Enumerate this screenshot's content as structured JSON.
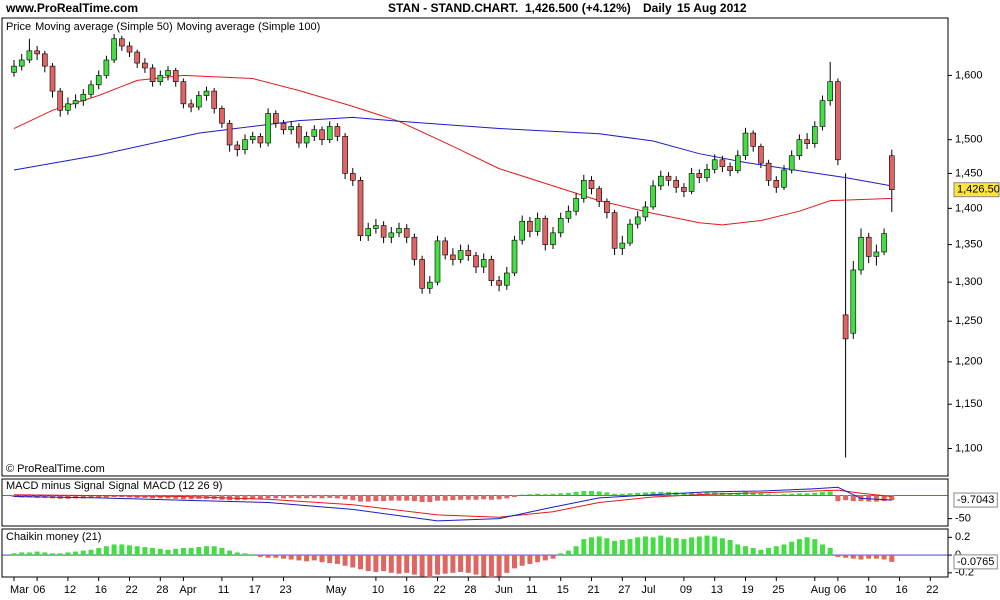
{
  "header": {
    "site": "www.ProRealTime.com",
    "instrument": "STAN - STAND.CHART.",
    "quote": "1,426.500 (+4.12%)",
    "period": "Daily",
    "date": "15 Aug 2012"
  },
  "chart_data": [
    {
      "type": "candlestick",
      "legend_label": "Price",
      "footer": "© ProRealTime.com",
      "log_scale": true,
      "up_color": "#44dd44",
      "down_color": "#e06464",
      "open": [
        1605,
        1615,
        1625,
        1640,
        1635,
        1615,
        1575,
        1545,
        1555,
        1560,
        1570,
        1585,
        1600,
        1625,
        1660,
        1648,
        1638,
        1620,
        1612,
        1590,
        1600,
        1608,
        1590,
        1555,
        1550,
        1568,
        1575,
        1548,
        1525,
        1492,
        1485,
        1500,
        1505,
        1495,
        1540,
        1525,
        1515,
        1520,
        1495,
        1505,
        1515,
        1500,
        1520,
        1505,
        1450,
        1440,
        1362,
        1372,
        1376,
        1360,
        1366,
        1372,
        1360,
        1330,
        1292,
        1300,
        1355,
        1336,
        1330,
        1342,
        1335,
        1320,
        1330,
        1302,
        1296,
        1312,
        1356,
        1382,
        1368,
        1386,
        1350,
        1366,
        1386,
        1396,
        1414,
        1440,
        1428,
        1410,
        1394,
        1345,
        1352,
        1378,
        1388,
        1402,
        1432,
        1446,
        1440,
        1430,
        1424,
        1450,
        1444,
        1456,
        1470,
        1460,
        1454,
        1476,
        1510,
        1490,
        1465,
        1440,
        1430,
        1455,
        1476,
        1500,
        1494,
        1520,
        1560,
        1590,
        1258,
        1235,
        1316,
        1360,
        1334,
        1340,
        1476
      ],
      "high": [
        1625,
        1635,
        1660,
        1648,
        1640,
        1620,
        1580,
        1565,
        1570,
        1578,
        1592,
        1608,
        1632,
        1668,
        1665,
        1655,
        1642,
        1628,
        1618,
        1608,
        1615,
        1612,
        1595,
        1562,
        1575,
        1582,
        1580,
        1552,
        1530,
        1498,
        1508,
        1512,
        1510,
        1548,
        1545,
        1530,
        1528,
        1525,
        1512,
        1522,
        1520,
        1528,
        1525,
        1510,
        1458,
        1445,
        1380,
        1385,
        1382,
        1374,
        1380,
        1378,
        1365,
        1335,
        1308,
        1362,
        1360,
        1345,
        1350,
        1350,
        1340,
        1338,
        1335,
        1308,
        1320,
        1362,
        1390,
        1388,
        1394,
        1390,
        1374,
        1394,
        1404,
        1422,
        1448,
        1446,
        1432,
        1414,
        1398,
        1362,
        1385,
        1396,
        1410,
        1440,
        1454,
        1452,
        1446,
        1436,
        1458,
        1456,
        1464,
        1478,
        1476,
        1466,
        1484,
        1518,
        1514,
        1494,
        1470,
        1446,
        1462,
        1484,
        1508,
        1510,
        1528,
        1568,
        1622,
        1595,
        1450,
        1328,
        1372,
        1366,
        1350,
        1372,
        1485
      ],
      "low": [
        1598,
        1608,
        1620,
        1625,
        1605,
        1565,
        1535,
        1538,
        1548,
        1552,
        1565,
        1578,
        1595,
        1620,
        1640,
        1630,
        1612,
        1604,
        1582,
        1584,
        1592,
        1582,
        1548,
        1542,
        1545,
        1560,
        1540,
        1518,
        1482,
        1475,
        1478,
        1494,
        1488,
        1490,
        1518,
        1508,
        1508,
        1488,
        1488,
        1498,
        1492,
        1495,
        1498,
        1442,
        1432,
        1355,
        1355,
        1365,
        1352,
        1352,
        1360,
        1352,
        1322,
        1285,
        1285,
        1296,
        1330,
        1322,
        1325,
        1328,
        1312,
        1312,
        1295,
        1288,
        1290,
        1308,
        1350,
        1360,
        1362,
        1342,
        1344,
        1360,
        1380,
        1390,
        1408,
        1420,
        1402,
        1386,
        1336,
        1336,
        1348,
        1372,
        1382,
        1398,
        1426,
        1432,
        1422,
        1416,
        1420,
        1436,
        1438,
        1450,
        1452,
        1446,
        1450,
        1470,
        1482,
        1458,
        1432,
        1422,
        1426,
        1450,
        1470,
        1486,
        1488,
        1514,
        1552,
        1462,
        1090,
        1228,
        1310,
        1325,
        1322,
        1336,
        1395
      ],
      "close": [
        1615,
        1625,
        1640,
        1635,
        1615,
        1575,
        1545,
        1555,
        1560,
        1570,
        1585,
        1600,
        1625,
        1660,
        1648,
        1638,
        1620,
        1612,
        1590,
        1600,
        1608,
        1590,
        1555,
        1550,
        1568,
        1575,
        1548,
        1525,
        1492,
        1485,
        1500,
        1505,
        1495,
        1540,
        1525,
        1515,
        1520,
        1495,
        1505,
        1515,
        1500,
        1520,
        1505,
        1450,
        1440,
        1362,
        1372,
        1376,
        1360,
        1366,
        1372,
        1360,
        1330,
        1292,
        1300,
        1355,
        1336,
        1330,
        1342,
        1335,
        1320,
        1330,
        1302,
        1296,
        1312,
        1356,
        1382,
        1368,
        1386,
        1350,
        1366,
        1386,
        1396,
        1414,
        1440,
        1428,
        1410,
        1394,
        1345,
        1352,
        1378,
        1388,
        1402,
        1432,
        1446,
        1440,
        1430,
        1424,
        1450,
        1444,
        1456,
        1470,
        1460,
        1454,
        1476,
        1510,
        1490,
        1465,
        1440,
        1430,
        1455,
        1476,
        1500,
        1494,
        1520,
        1560,
        1590,
        1470,
        1228,
        1316,
        1360,
        1334,
        1340,
        1365,
        1426.5
      ],
      "close_label": "1,426.500",
      "series": [
        {
          "name": "Moving average (Simple 50)",
          "color": "#e01c1c",
          "x": [
            0,
            5,
            11,
            16,
            22,
            31,
            37,
            44,
            50,
            57,
            63,
            70,
            76,
            83,
            89,
            92,
            97,
            102,
            106,
            114
          ],
          "values": [
            1517,
            1545,
            1568,
            1592,
            1600,
            1595,
            1576,
            1551,
            1528,
            1490,
            1457,
            1432,
            1411,
            1393,
            1380,
            1377,
            1383,
            1396,
            1411,
            1414
          ]
        },
        {
          "name": "Moving average (Simple 100)",
          "color": "#1c1cc8",
          "x": [
            0,
            11,
            24,
            37,
            44,
            50,
            63,
            76,
            83,
            89,
            95,
            102,
            108,
            114
          ],
          "values": [
            1455,
            1477,
            1510,
            1529,
            1534,
            1528,
            1517,
            1509,
            1498,
            1479,
            1466,
            1454,
            1444,
            1432
          ]
        }
      ],
      "ylim": [
        1070,
        1695
      ],
      "yticks": [
        {
          "value": 1100,
          "label": "1,100"
        },
        {
          "value": 1150,
          "label": "1,150"
        },
        {
          "value": 1200,
          "label": "1,200"
        },
        {
          "value": 1250,
          "label": "1,250"
        },
        {
          "value": 1300,
          "label": "1,300"
        },
        {
          "value": 1350,
          "label": "1,350"
        },
        {
          "value": 1400,
          "label": "1,400"
        },
        {
          "value": 1450,
          "label": "1,450"
        },
        {
          "value": 1500,
          "label": "1,500"
        },
        {
          "value": 1600,
          "label": "1,600"
        }
      ],
      "xlim": [
        -1.56,
        121.3
      ],
      "xticks": [
        {
          "value": 0,
          "label": "Mar"
        },
        {
          "value": 3,
          "label": "06"
        },
        {
          "value": 7,
          "label": "12"
        },
        {
          "value": 11,
          "label": "16"
        },
        {
          "value": 15,
          "label": "22"
        },
        {
          "value": 19,
          "label": "28"
        },
        {
          "value": 22,
          "label": "Apr"
        },
        {
          "value": 27,
          "label": "11"
        },
        {
          "value": 31,
          "label": "17"
        },
        {
          "value": 35,
          "label": "23"
        },
        {
          "value": 41,
          "label": "May"
        },
        {
          "value": 47,
          "label": "10"
        },
        {
          "value": 51,
          "label": "16"
        },
        {
          "value": 55,
          "label": "22"
        },
        {
          "value": 59,
          "label": "28"
        },
        {
          "value": 63,
          "label": "Jun"
        },
        {
          "value": 67,
          "label": "11"
        },
        {
          "value": 71,
          "label": "15"
        },
        {
          "value": 75,
          "label": "21"
        },
        {
          "value": 79,
          "label": "27"
        },
        {
          "value": 82,
          "label": "Jul"
        },
        {
          "value": 87,
          "label": "09"
        },
        {
          "value": 91,
          "label": "13"
        },
        {
          "value": 95,
          "label": "19"
        },
        {
          "value": 99,
          "label": "25"
        },
        {
          "value": 104,
          "label": "Aug"
        },
        {
          "value": 107,
          "label": "06"
        },
        {
          "value": 111,
          "label": "10"
        },
        {
          "value": 115,
          "label": "16"
        },
        {
          "value": 119,
          "label": "22"
        }
      ]
    },
    {
      "type": "macd",
      "histogram_name": "MACD minus Signal",
      "histogram_up_color": "#44dd44",
      "histogram_down_color": "#e06464",
      "histogram": [
        -3,
        -4,
        -4,
        -5,
        -5,
        -6,
        -7,
        -7,
        -6,
        -6,
        -5,
        -5,
        -4,
        -3,
        -3,
        -4,
        -5,
        -5,
        -6,
        -6,
        -6,
        -7,
        -8,
        -8,
        -7,
        -7,
        -8,
        -9,
        -10,
        -10,
        -9,
        -8,
        -8,
        -6,
        -6,
        -6,
        -5,
        -6,
        -6,
        -5,
        -6,
        -5,
        -6,
        -8,
        -10,
        -13,
        -13,
        -12,
        -12,
        -11,
        -11,
        -11,
        -12,
        -14,
        -14,
        -11,
        -11,
        -10,
        -9,
        -9,
        -9,
        -8,
        -9,
        -8,
        -6,
        -3,
        2,
        3,
        4,
        3,
        4,
        5,
        6,
        8,
        10,
        10,
        9,
        7,
        4,
        4,
        5,
        6,
        7,
        8,
        8,
        8,
        7,
        6,
        7,
        6,
        7,
        7,
        6,
        5,
        6,
        8,
        7,
        5,
        3,
        2,
        3,
        4,
        5,
        5,
        6,
        8,
        9,
        -12,
        -10,
        -12,
        -12,
        -13,
        -13,
        -12,
        -10
      ],
      "series": [
        {
          "name": "Signal",
          "color": "#e01c1c",
          "x": [
            0,
            11,
            22,
            33,
            44,
            55,
            63,
            70,
            76,
            83,
            90,
            97,
            104,
            107,
            110,
            114
          ],
          "values": [
            2,
            0,
            -2,
            -8,
            -20,
            -42,
            -47,
            -35,
            -15,
            -3,
            3,
            6,
            10,
            12,
            5,
            -2
          ]
        },
        {
          "name": "MACD (12 26 9)",
          "color": "#1c1cc8",
          "x": [
            0,
            11,
            22,
            33,
            44,
            55,
            63,
            70,
            76,
            83,
            90,
            97,
            104,
            107,
            110,
            114
          ],
          "values": [
            -2,
            -5,
            -10,
            -15,
            -30,
            -55,
            -50,
            -25,
            -5,
            2,
            8,
            10,
            15,
            18,
            -6,
            -9.7043
          ]
        }
      ],
      "ylim": [
        -66,
        36
      ],
      "yticks": [
        -50
      ]
    },
    {
      "type": "bar",
      "title": "Chaikin money (21)",
      "up_color": "#44dd44",
      "down_color": "#e06464",
      "values": [
        0.02,
        0.03,
        0.03,
        0.04,
        0.03,
        0.02,
        0.02,
        0.03,
        0.04,
        0.05,
        0.06,
        0.08,
        0.1,
        0.12,
        0.12,
        0.11,
        0.1,
        0.09,
        0.08,
        0.07,
        0.06,
        0.07,
        0.08,
        0.08,
        0.09,
        0.1,
        0.1,
        0.08,
        0.05,
        0.03,
        0.02,
        0.01,
        -0.02,
        -0.03,
        -0.03,
        -0.04,
        -0.05,
        -0.06,
        -0.07,
        -0.06,
        -0.08,
        -0.09,
        -0.1,
        -0.12,
        -0.14,
        -0.16,
        -0.18,
        -0.19,
        -0.18,
        -0.2,
        -0.21,
        -0.2,
        -0.22,
        -0.24,
        -0.25,
        -0.22,
        -0.21,
        -0.2,
        -0.19,
        -0.2,
        -0.22,
        -0.24,
        -0.25,
        -0.24,
        -0.2,
        -0.15,
        -0.12,
        -0.1,
        -0.08,
        -0.06,
        -0.04,
        0.02,
        0.05,
        0.1,
        0.18,
        0.2,
        0.21,
        0.19,
        0.16,
        0.17,
        0.18,
        0.2,
        0.21,
        0.2,
        0.22,
        0.2,
        0.19,
        0.18,
        0.2,
        0.21,
        0.22,
        0.21,
        0.19,
        0.17,
        0.12,
        0.1,
        0.08,
        0.06,
        0.08,
        0.1,
        0.12,
        0.15,
        0.18,
        0.2,
        0.18,
        0.12,
        0.08,
        -0.02,
        -0.03,
        -0.04,
        -0.05,
        -0.04,
        -0.04,
        -0.05,
        -0.0765
      ],
      "ylim": [
        -0.247,
        0.294
      ],
      "yticks": [
        0.2,
        0,
        -0.2
      ]
    }
  ]
}
